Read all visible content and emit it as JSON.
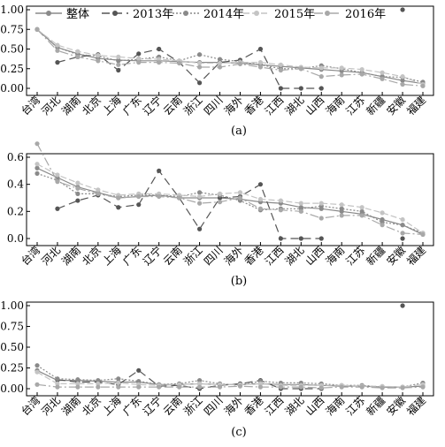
{
  "chart_data": [
    {
      "type": "line",
      "panel_label": "(a)",
      "categories": [
        "台湾",
        "河北",
        "湖南",
        "北京",
        "上海",
        "广东",
        "辽宁",
        "云南",
        "浙江",
        "四川",
        "海外",
        "香港",
        "江西",
        "湖北",
        "山西",
        "海南",
        "江苏",
        "新疆",
        "安徽",
        "福建"
      ],
      "ylim": [
        0,
        1.0
      ],
      "yticks": [
        "0.00",
        "0.25",
        "0.50",
        "0.75",
        "1.00"
      ],
      "legend_position": "top",
      "series": [
        {
          "name": "整体",
          "values": [
            0.75,
            0.52,
            0.44,
            0.38,
            0.36,
            0.35,
            0.35,
            0.34,
            0.33,
            0.33,
            0.32,
            0.3,
            0.28,
            0.26,
            0.24,
            0.22,
            0.2,
            0.15,
            0.1,
            0.06
          ]
        },
        {
          "name": "2013年",
          "values": [
            null,
            0.33,
            0.4,
            0.43,
            0.23,
            0.44,
            0.5,
            0.33,
            0.07,
            0.33,
            0.36,
            0.5,
            0.0,
            0.0,
            0.0,
            null,
            null,
            null,
            1.0,
            null
          ]
        },
        {
          "name": "2014年",
          "values": [
            0.75,
            0.52,
            0.43,
            0.41,
            0.35,
            0.37,
            0.4,
            0.35,
            0.43,
            0.37,
            0.34,
            0.3,
            0.25,
            0.25,
            0.29,
            0.25,
            0.2,
            0.15,
            0.14,
            0.08
          ]
        },
        {
          "name": "2015年",
          "values": [
            0.75,
            0.55,
            0.47,
            0.42,
            0.4,
            0.38,
            0.37,
            0.35,
            0.32,
            0.32,
            0.33,
            0.33,
            0.3,
            0.27,
            0.26,
            0.26,
            0.24,
            0.2,
            0.15,
            0.05
          ]
        },
        {
          "name": "2016年",
          "values": [
            0.75,
            0.48,
            0.4,
            0.35,
            0.3,
            0.33,
            0.33,
            0.32,
            0.27,
            0.27,
            0.31,
            0.27,
            0.23,
            0.25,
            0.15,
            0.17,
            0.18,
            0.12,
            0.05,
            0.03
          ]
        }
      ]
    },
    {
      "type": "line",
      "panel_label": "(b)",
      "categories": [
        "台湾",
        "河北",
        "湖南",
        "北京",
        "上海",
        "广东",
        "辽宁",
        "云南",
        "浙江",
        "四川",
        "海外",
        "香港",
        "江西",
        "湖北",
        "山西",
        "海南",
        "江苏",
        "新疆",
        "安徽",
        "福建"
      ],
      "ylim": [
        0,
        0.7
      ],
      "yticks": [
        "0.0",
        "0.2",
        "0.4",
        "0.6"
      ],
      "series": [
        {
          "name": "整体",
          "values": [
            0.52,
            0.45,
            0.38,
            0.34,
            0.3,
            0.31,
            0.32,
            0.3,
            0.3,
            0.3,
            0.29,
            0.27,
            0.26,
            0.23,
            0.22,
            0.2,
            0.18,
            0.14,
            0.1,
            0.03
          ]
        },
        {
          "name": "2013年",
          "values": [
            null,
            0.22,
            0.28,
            0.32,
            0.23,
            0.25,
            0.5,
            0.3,
            0.07,
            0.3,
            0.31,
            0.4,
            0.0,
            0.0,
            0.0,
            null,
            null,
            null,
            0.0,
            null
          ]
        },
        {
          "name": "2014年",
          "values": [
            0.48,
            0.43,
            0.33,
            0.33,
            0.31,
            0.32,
            0.32,
            0.31,
            0.34,
            0.32,
            0.28,
            0.21,
            0.22,
            0.22,
            0.24,
            0.22,
            0.2,
            0.12,
            0.1,
            0.04
          ]
        },
        {
          "name": "2015年",
          "values": [
            0.55,
            0.47,
            0.41,
            0.36,
            0.32,
            0.33,
            0.33,
            0.32,
            0.31,
            0.33,
            0.34,
            0.29,
            0.28,
            0.26,
            0.26,
            0.25,
            0.23,
            0.19,
            0.14,
            0.04
          ]
        },
        {
          "name": "2016年",
          "values": [
            0.7,
            0.42,
            0.37,
            0.33,
            0.3,
            0.31,
            0.31,
            0.3,
            0.26,
            0.27,
            0.3,
            0.22,
            0.21,
            0.2,
            0.15,
            0.17,
            0.17,
            0.1,
            0.04,
            0.03
          ]
        }
      ]
    },
    {
      "type": "line",
      "panel_label": "(c)",
      "categories": [
        "台湾",
        "河北",
        "湖南",
        "北京",
        "上海",
        "广东",
        "辽宁",
        "云南",
        "浙江",
        "四川",
        "海外",
        "香港",
        "江西",
        "湖北",
        "山西",
        "海南",
        "江苏",
        "新疆",
        "安徽",
        "福建"
      ],
      "ylim": [
        0,
        1.0
      ],
      "yticks": [
        "0.00",
        "0.25",
        "0.50",
        "0.75",
        "1.00"
      ],
      "series": [
        {
          "name": "整体",
          "values": [
            0.22,
            0.1,
            0.1,
            0.09,
            0.08,
            0.08,
            0.05,
            0.05,
            0.06,
            0.05,
            0.05,
            0.06,
            0.05,
            0.05,
            0.04,
            0.03,
            0.03,
            0.02,
            0.02,
            0.03
          ]
        },
        {
          "name": "2013年",
          "values": [
            null,
            0.11,
            0.08,
            0.08,
            0.05,
            0.22,
            0.03,
            0.04,
            0.0,
            0.04,
            0.06,
            0.1,
            0.0,
            0.0,
            0.0,
            null,
            null,
            null,
            1.0,
            null
          ]
        },
        {
          "name": "2014年",
          "values": [
            0.28,
            0.12,
            0.11,
            0.1,
            0.12,
            0.09,
            0.05,
            0.06,
            0.1,
            0.06,
            0.04,
            0.09,
            0.07,
            0.07,
            0.06,
            0.04,
            0.04,
            0.02,
            0.02,
            0.07
          ]
        },
        {
          "name": "2015年",
          "values": [
            0.2,
            0.06,
            0.06,
            0.06,
            0.07,
            0.05,
            0.04,
            0.05,
            0.06,
            0.05,
            0.05,
            0.06,
            0.04,
            0.04,
            0.04,
            0.04,
            0.03,
            0.03,
            0.02,
            0.05
          ]
        },
        {
          "name": "2016年",
          "values": [
            0.05,
            0.02,
            0.02,
            0.02,
            0.02,
            0.02,
            0.02,
            0.02,
            0.02,
            0.02,
            0.03,
            0.02,
            0.02,
            0.02,
            0.01,
            0.02,
            0.02,
            0.01,
            0.01,
            0.02
          ]
        }
      ]
    }
  ],
  "series_styles": [
    {
      "color": "#8a8a8a",
      "dash": "",
      "marker": "circle"
    },
    {
      "color": "#555555",
      "dash": "9,5",
      "marker": "circle"
    },
    {
      "color": "#8a8a8a",
      "dash": "2,2",
      "marker": "circle"
    },
    {
      "color": "#c4c4c4",
      "dash": "7,3",
      "marker": "circle"
    },
    {
      "color": "#a8a8a8",
      "dash": "10,3,2,3",
      "marker": "circle"
    }
  ]
}
